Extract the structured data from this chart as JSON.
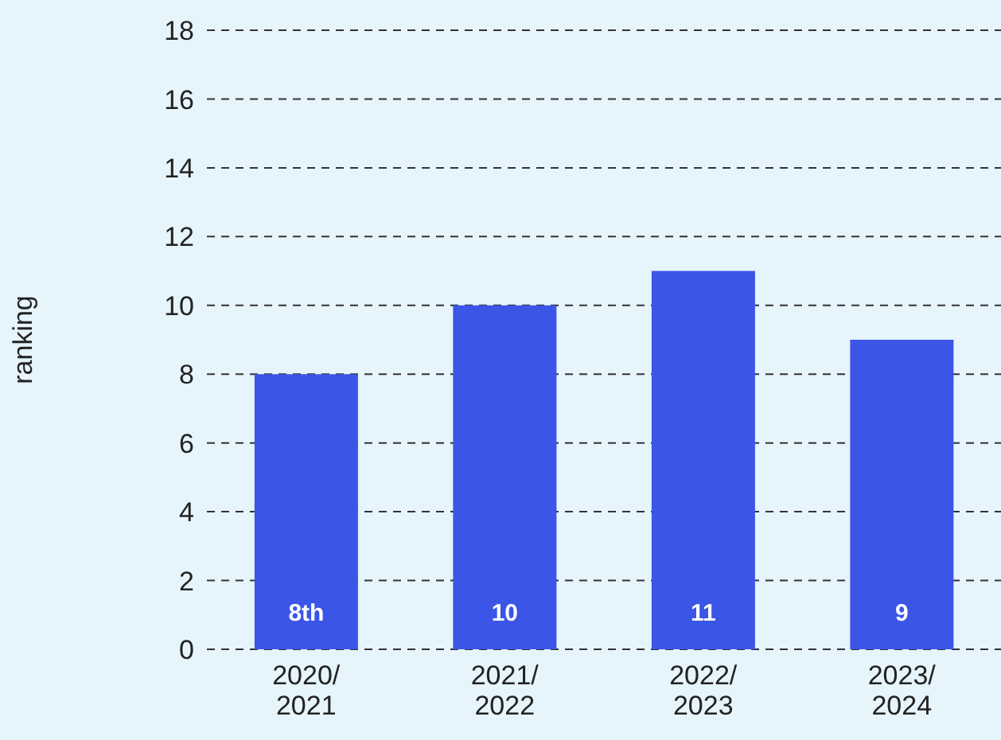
{
  "chart_data": {
    "type": "bar",
    "ylabel": "ranking",
    "categories": [
      "2020/2021",
      "2021/2022",
      "2022/2023",
      "2023/2024"
    ],
    "values": [
      8,
      10,
      11,
      9
    ],
    "value_labels": [
      "8th",
      "10",
      "11",
      "9"
    ],
    "color": "#3b55e6",
    "ylim": [
      0,
      18
    ],
    "yticks": [
      0,
      2,
      4,
      6,
      8,
      10,
      12,
      14,
      16,
      18
    ],
    "grid": "y",
    "legend": false
  }
}
